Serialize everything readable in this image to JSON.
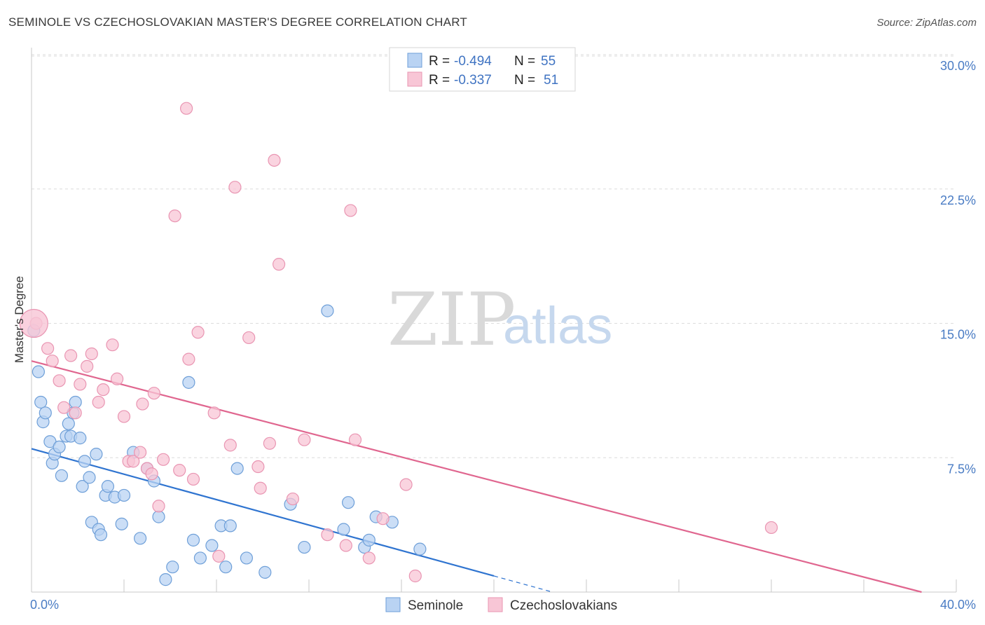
{
  "title": "SEMINOLE VS CZECHOSLOVAKIAN MASTER'S DEGREE CORRELATION CHART",
  "source": "Source: ZipAtlas.com",
  "watermark": {
    "zip": "ZIP",
    "atlas": "atlas"
  },
  "colors": {
    "seminole_fill": "#b9d3f3",
    "seminole_stroke": "#6e9fd8",
    "seminole_line": "#2f74d0",
    "czech_fill": "#f8c6d6",
    "czech_stroke": "#e995b2",
    "czech_line": "#e0668f",
    "grid": "#dcdcdc",
    "tick_text": "#4a7cc4"
  },
  "legend": {
    "rows": [
      {
        "r_label": "R =",
        "r_value": "-0.494",
        "n_label": "N =",
        "n_value": "55"
      },
      {
        "r_label": "R =",
        "r_value": "-0.337",
        "n_label": "N =",
        "n_value": "51"
      }
    ]
  },
  "chart_data": {
    "type": "scatter",
    "title": "SEMINOLE VS CZECHOSLOVAKIAN MASTER'S DEGREE CORRELATION CHART",
    "xlabel": "",
    "ylabel": "Master's Degree",
    "xlim": [
      0,
      40
    ],
    "ylim": [
      0,
      30
    ],
    "x_tick_labels": {
      "min": "0.0%",
      "max": "40.0%"
    },
    "y_ticks": [
      {
        "value": 7.5,
        "label": "7.5%"
      },
      {
        "value": 15,
        "label": "15.0%"
      },
      {
        "value": 22.5,
        "label": "22.5%"
      },
      {
        "value": 30,
        "label": "30.0%"
      }
    ],
    "series": [
      {
        "name": "Seminole",
        "trend": {
          "x0": 0,
          "y0": 8.0,
          "x1": 20,
          "y1": 0.9,
          "dash_to_x": 22.5
        },
        "points": [
          [
            0.1,
            14.6
          ],
          [
            0.3,
            12.3
          ],
          [
            0.4,
            10.6
          ],
          [
            0.5,
            9.5
          ],
          [
            0.6,
            10.0
          ],
          [
            0.8,
            8.4
          ],
          [
            0.9,
            7.2
          ],
          [
            1.0,
            7.7
          ],
          [
            1.2,
            8.1
          ],
          [
            1.3,
            6.5
          ],
          [
            1.5,
            8.7
          ],
          [
            1.6,
            9.4
          ],
          [
            1.7,
            8.7
          ],
          [
            1.8,
            10.0
          ],
          [
            1.9,
            10.6
          ],
          [
            2.1,
            8.6
          ],
          [
            2.2,
            5.9
          ],
          [
            2.3,
            7.3
          ],
          [
            2.5,
            6.4
          ],
          [
            2.6,
            3.9
          ],
          [
            2.8,
            7.7
          ],
          [
            2.9,
            3.5
          ],
          [
            3.0,
            3.2
          ],
          [
            3.2,
            5.4
          ],
          [
            3.3,
            5.9
          ],
          [
            3.6,
            5.3
          ],
          [
            3.9,
            3.8
          ],
          [
            4.0,
            5.4
          ],
          [
            4.4,
            7.8
          ],
          [
            4.7,
            3.0
          ],
          [
            5.0,
            6.9
          ],
          [
            5.3,
            6.2
          ],
          [
            5.5,
            4.2
          ],
          [
            5.8,
            0.7
          ],
          [
            6.1,
            1.4
          ],
          [
            6.8,
            11.7
          ],
          [
            7.0,
            2.9
          ],
          [
            7.3,
            1.9
          ],
          [
            7.8,
            2.6
          ],
          [
            8.2,
            3.7
          ],
          [
            8.4,
            1.4
          ],
          [
            8.6,
            3.7
          ],
          [
            8.9,
            6.9
          ],
          [
            9.3,
            1.9
          ],
          [
            10.1,
            1.1
          ],
          [
            11.2,
            4.9
          ],
          [
            11.8,
            2.5
          ],
          [
            12.8,
            15.7
          ],
          [
            13.5,
            3.5
          ],
          [
            13.7,
            5.0
          ],
          [
            14.4,
            2.5
          ],
          [
            14.6,
            2.9
          ],
          [
            14.9,
            4.2
          ],
          [
            15.6,
            3.9
          ],
          [
            16.8,
            2.4
          ]
        ]
      },
      {
        "name": "Czechoslovakians",
        "trend": {
          "x0": 0,
          "y0": 12.9,
          "x1": 38.5,
          "y1": 0.0
        },
        "points": [
          [
            0.2,
            15.0
          ],
          [
            0.7,
            13.6
          ],
          [
            0.9,
            12.9
          ],
          [
            1.2,
            11.8
          ],
          [
            1.4,
            10.3
          ],
          [
            1.7,
            13.2
          ],
          [
            1.9,
            10.0
          ],
          [
            2.1,
            11.6
          ],
          [
            2.4,
            12.6
          ],
          [
            2.6,
            13.3
          ],
          [
            2.9,
            10.6
          ],
          [
            3.1,
            11.3
          ],
          [
            3.5,
            13.8
          ],
          [
            3.7,
            11.9
          ],
          [
            4.0,
            9.8
          ],
          [
            4.2,
            7.3
          ],
          [
            4.4,
            7.3
          ],
          [
            4.7,
            7.8
          ],
          [
            4.8,
            10.5
          ],
          [
            5.0,
            6.9
          ],
          [
            5.2,
            6.6
          ],
          [
            5.3,
            11.1
          ],
          [
            5.5,
            4.8
          ],
          [
            5.7,
            7.4
          ],
          [
            6.2,
            21.0
          ],
          [
            6.4,
            6.8
          ],
          [
            6.7,
            27.0
          ],
          [
            6.8,
            13.0
          ],
          [
            7.0,
            6.3
          ],
          [
            7.2,
            14.5
          ],
          [
            7.9,
            10.0
          ],
          [
            8.1,
            2.0
          ],
          [
            8.6,
            8.2
          ],
          [
            8.8,
            22.6
          ],
          [
            9.4,
            14.2
          ],
          [
            9.8,
            7.0
          ],
          [
            9.9,
            5.8
          ],
          [
            10.3,
            8.3
          ],
          [
            10.7,
            18.3
          ],
          [
            10.5,
            24.1
          ],
          [
            11.3,
            5.2
          ],
          [
            11.8,
            8.5
          ],
          [
            12.8,
            3.2
          ],
          [
            13.6,
            2.6
          ],
          [
            13.8,
            21.3
          ],
          [
            14.0,
            8.5
          ],
          [
            14.6,
            1.9
          ],
          [
            15.2,
            4.1
          ],
          [
            16.2,
            6.0
          ],
          [
            16.6,
            0.9
          ],
          [
            32.0,
            3.6
          ]
        ]
      }
    ]
  },
  "bottom_legend": [
    {
      "label": "Seminole"
    },
    {
      "label": "Czechoslovakians"
    }
  ]
}
